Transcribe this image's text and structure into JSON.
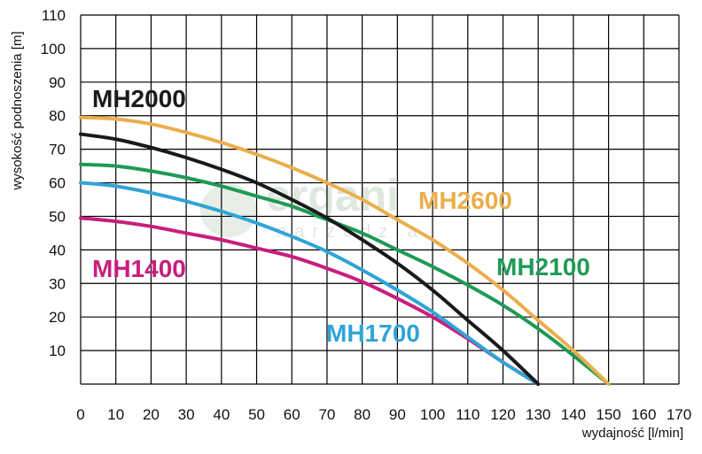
{
  "chart_data": {
    "type": "line",
    "xlabel": "wydajność [l/min]",
    "ylabel": "wysokość podnoszenia [m]",
    "xlim": [
      0,
      170
    ],
    "ylim": [
      0,
      110
    ],
    "x_ticks": [
      "0",
      "10",
      "20",
      "30",
      "40",
      "50",
      "60",
      "70",
      "80",
      "90",
      "100",
      "110",
      "120",
      "130",
      "140",
      "150",
      "160",
      "170"
    ],
    "y_ticks": [
      "10",
      "20",
      "30",
      "40",
      "50",
      "60",
      "70",
      "80",
      "90",
      "100",
      "110"
    ],
    "grid": true,
    "watermark": {
      "main": "ergani",
      "sub": "narzedzia"
    },
    "series": [
      {
        "name": "MH2000",
        "color": "#1a1a1a",
        "x": [
          0,
          10,
          20,
          30,
          40,
          50,
          60,
          70,
          80,
          90,
          100,
          110,
          120,
          130
        ],
        "y": [
          74.5,
          73,
          70.5,
          67.5,
          64,
          60,
          55,
          49.5,
          43,
          36,
          28,
          19,
          10,
          0
        ]
      },
      {
        "name": "MH2600",
        "color": "#eaae4c",
        "x": [
          0,
          10,
          20,
          30,
          40,
          50,
          60,
          70,
          80,
          90,
          100,
          110,
          120,
          130,
          140,
          150
        ],
        "y": [
          79.5,
          79,
          77.5,
          75,
          72,
          68.5,
          64.5,
          60,
          55,
          49,
          43,
          36,
          28,
          19,
          10,
          0
        ]
      },
      {
        "name": "MH2100",
        "color": "#1f9a55",
        "x": [
          0,
          10,
          20,
          30,
          40,
          50,
          60,
          70,
          80,
          90,
          100,
          110,
          120,
          130,
          140,
          150
        ],
        "y": [
          65.5,
          65,
          63.5,
          61.5,
          59,
          56,
          53,
          49,
          45,
          40,
          35,
          29.5,
          23.5,
          16.5,
          8.5,
          0
        ]
      },
      {
        "name": "MH1700",
        "color": "#2fa4d6",
        "x": [
          0,
          10,
          20,
          30,
          40,
          50,
          60,
          70,
          80,
          90,
          100,
          110,
          120,
          130
        ],
        "y": [
          60,
          59,
          57,
          54.5,
          51.5,
          48,
          44,
          39.5,
          34,
          28,
          21.5,
          14,
          6.5,
          0
        ]
      },
      {
        "name": "MH1400",
        "color": "#c81e7c",
        "x": [
          0,
          10,
          20,
          30,
          40,
          50,
          60,
          70,
          80,
          90,
          100,
          110,
          120,
          130
        ],
        "y": [
          49.5,
          48.5,
          47,
          45,
          43,
          40.5,
          38,
          34.5,
          30.5,
          25.5,
          20,
          13.5,
          6.5,
          0
        ]
      }
    ]
  }
}
